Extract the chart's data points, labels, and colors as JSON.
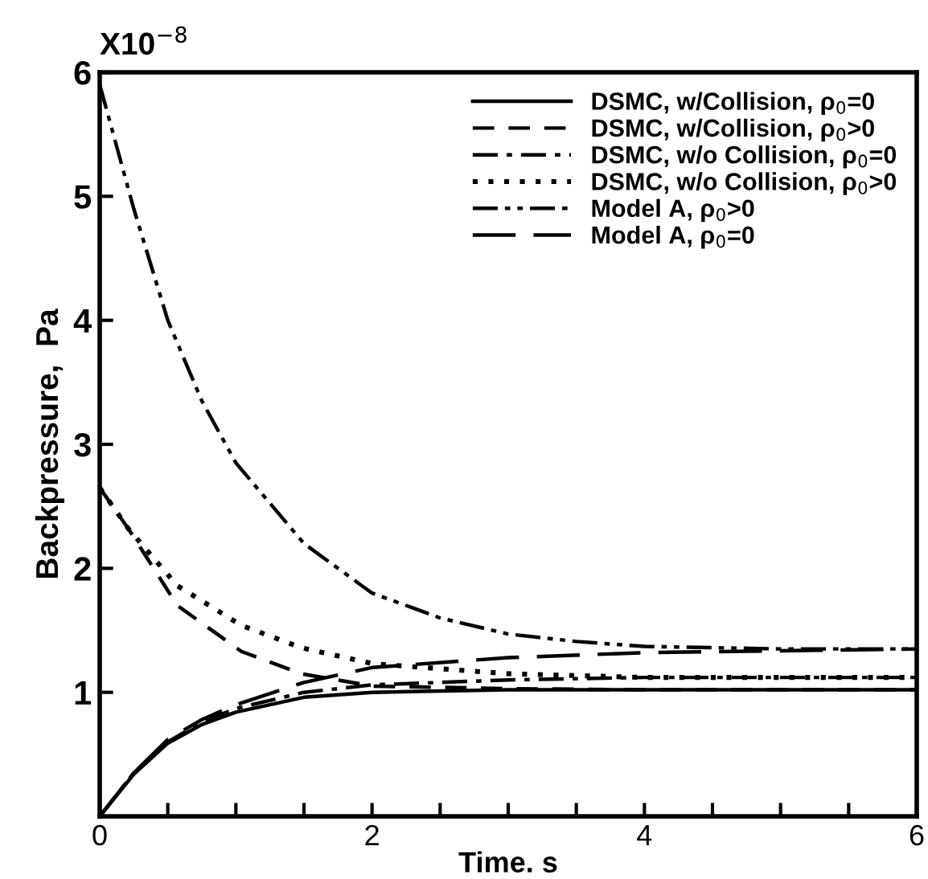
{
  "chart_data": {
    "type": "line",
    "xlabel": "Time. s",
    "ylabel": "Backpressure,  Pa",
    "annotations": [
      "X10$^{−8}$"
    ],
    "xlim": [
      0,
      6
    ],
    "ylim": [
      0,
      6
    ],
    "xticks": [
      0,
      {
        "value": 0.5,
        "label": null
      },
      {
        "value": 1,
        "label": null
      },
      {
        "value": 1.5,
        "label": null
      },
      2,
      {
        "value": 2.5,
        "label": null
      },
      {
        "value": 3,
        "label": null
      },
      {
        "value": 3.5,
        "label": null
      },
      4,
      {
        "value": 4.5,
        "label": null
      },
      {
        "value": 5,
        "label": null
      },
      {
        "value": 5.5,
        "label": null
      },
      6
    ],
    "yticks": [
      {
        "value": 0,
        "label": null
      },
      1,
      2,
      3,
      4,
      5,
      6
    ],
    "grid": false,
    "legend": "top right",
    "series": [
      {
        "name": "DSMC, w/Collision, ρ$_{0}$=0",
        "color": "#000000",
        "line_style": "solid",
        "x": [
          0,
          0.25,
          0.5,
          0.75,
          1,
          1.5,
          2,
          3,
          4,
          6
        ],
        "values": [
          0,
          0.34,
          0.59,
          0.74,
          0.84,
          0.96,
          1.0,
          1.02,
          1.02,
          1.02
        ]
      },
      {
        "name": "DSMC, w/Collision, ρ$_{0}$>0",
        "color": "#000000",
        "line_style": "dashed",
        "x": [
          0,
          0.21,
          0.57,
          1.04,
          1.48,
          2.01,
          3,
          4,
          6
        ],
        "values": [
          2.65,
          2.32,
          1.7,
          1.33,
          1.15,
          1.05,
          1.03,
          1.02,
          1.02
        ]
      },
      {
        "name": "DSMC, w/o Collision, ρ$_{0}$=0",
        "color": "#000000",
        "line_style": "dashdot",
        "x": [
          0,
          0.25,
          0.5,
          0.75,
          1,
          1.5,
          2,
          3,
          4,
          6
        ],
        "values": [
          0,
          0.35,
          0.6,
          0.76,
          0.87,
          1.0,
          1.06,
          1.1,
          1.12,
          1.12
        ]
      },
      {
        "name": "DSMC, w/o Collision, ρ$_{0}$>0",
        "color": "#000000",
        "line_style": "dotted",
        "x": [
          0,
          0.21,
          0.57,
          1.04,
          1.48,
          2.01,
          3,
          4,
          6
        ],
        "values": [
          2.65,
          2.32,
          1.86,
          1.54,
          1.36,
          1.23,
          1.15,
          1.12,
          1.12
        ]
      },
      {
        "name": "Model A, ρ$_{0}$>0",
        "color": "#000000",
        "line_style": "dashdotdot",
        "x": [
          0,
          0.25,
          0.5,
          0.75,
          1,
          1.5,
          2,
          2.5,
          3,
          3.5,
          4,
          5,
          6
        ],
        "values": [
          5.9,
          4.9,
          4.0,
          3.35,
          2.85,
          2.2,
          1.8,
          1.6,
          1.47,
          1.41,
          1.37,
          1.35,
          1.35
        ]
      },
      {
        "name": "Model A, ρ$_{0}$=0",
        "color": "#000000",
        "line_style": "longdash",
        "x": [
          0,
          0.25,
          0.5,
          0.75,
          1,
          1.5,
          2,
          3,
          4,
          6
        ],
        "values": [
          0,
          0.35,
          0.62,
          0.78,
          0.9,
          1.08,
          1.2,
          1.28,
          1.32,
          1.35
        ]
      }
    ]
  }
}
